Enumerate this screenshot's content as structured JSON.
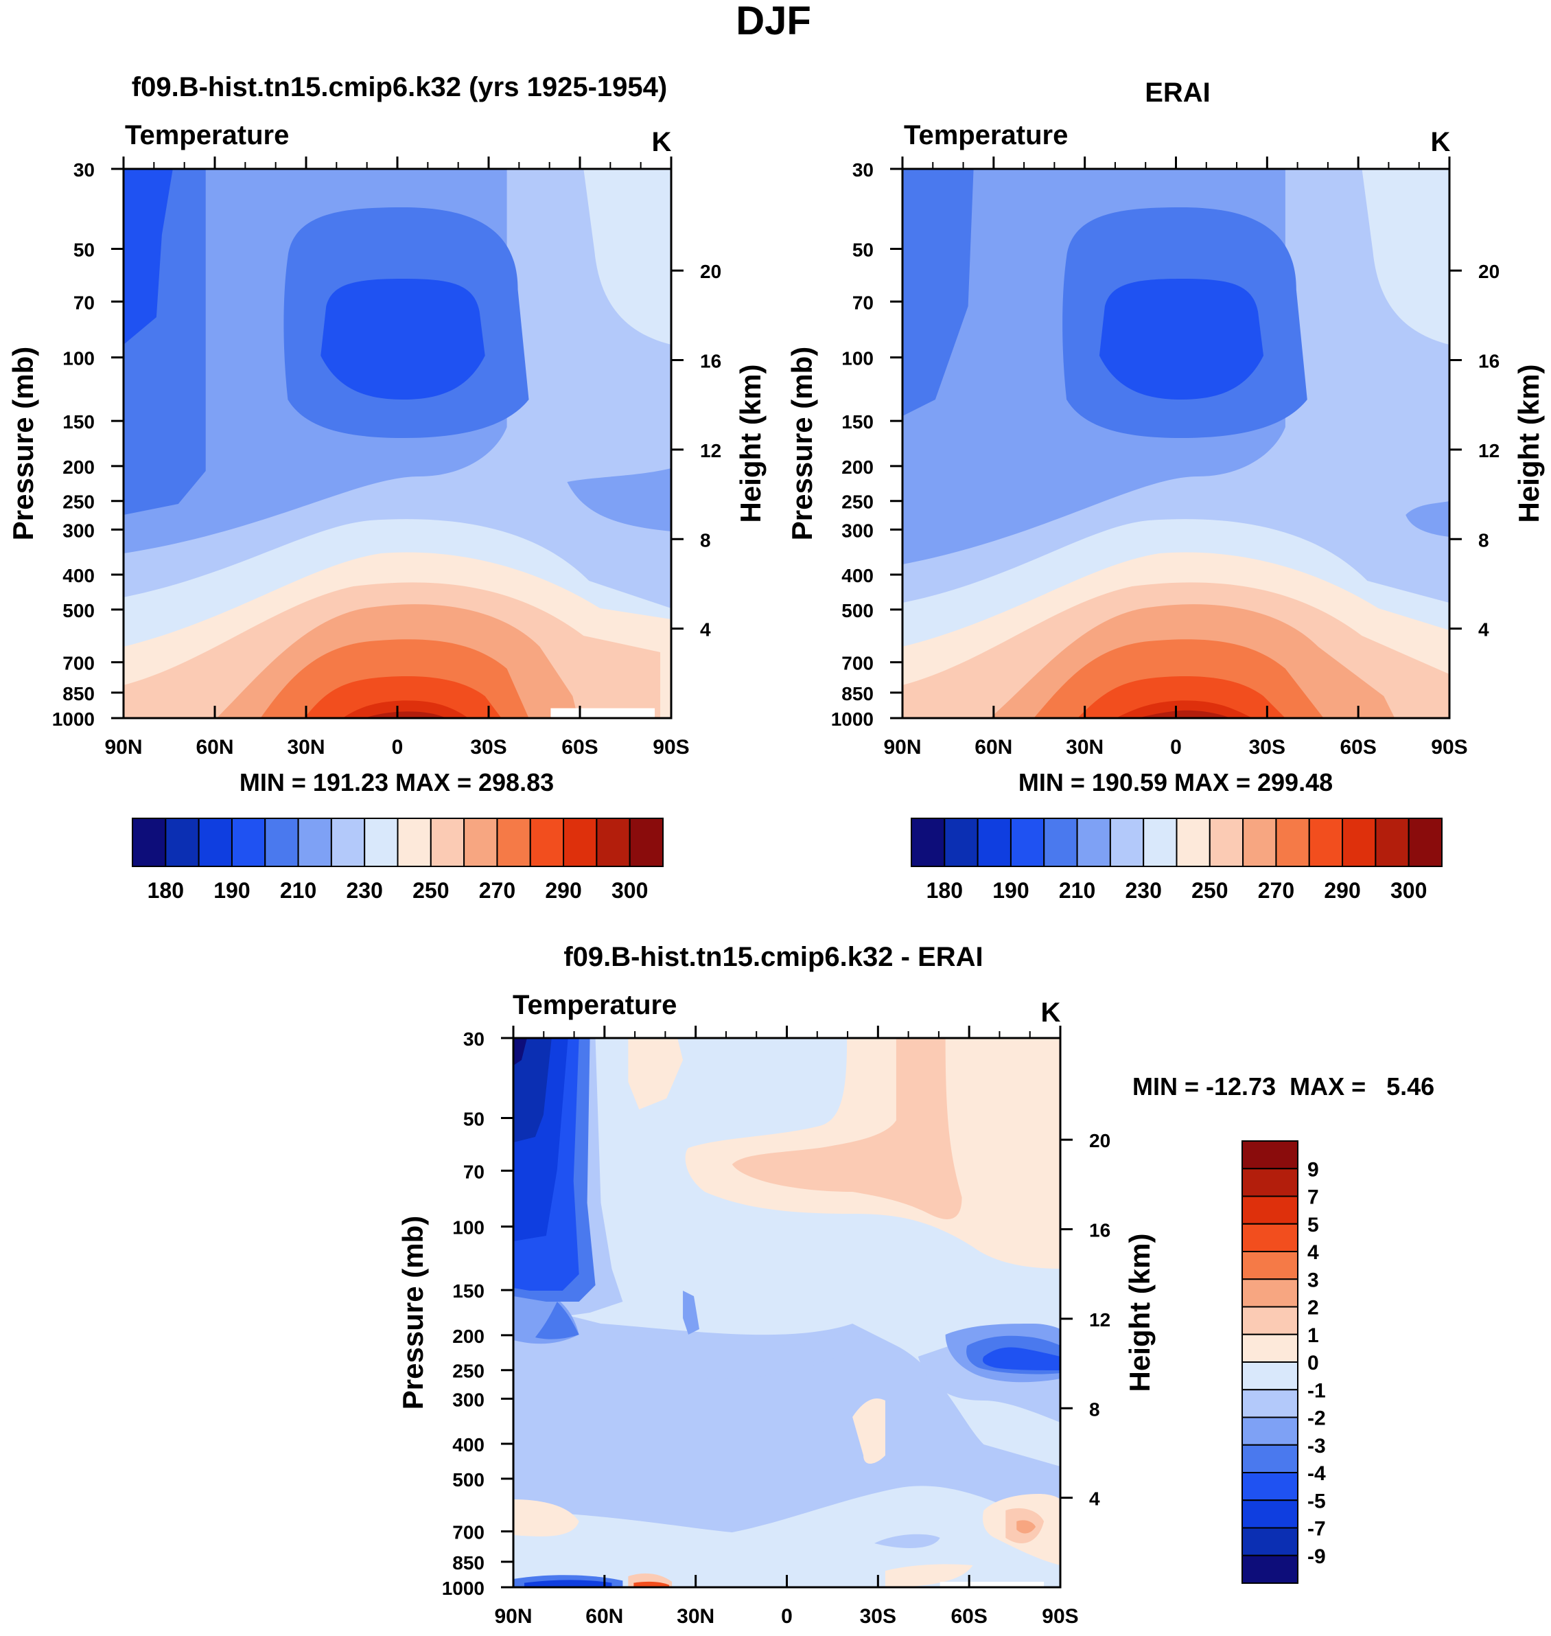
{
  "figure_title": "DJF",
  "units": "K",
  "chart_data": [
    {
      "type": "contour",
      "title": "f09.B-hist.tn15.cmip6.k32 (yrs 1925-1954)",
      "subtitle": "Temperature",
      "units": "K",
      "xlabel": "",
      "ylabel": "Pressure (mb)",
      "y2label": "Height (km)",
      "x_ticks": [
        "90N",
        "60N",
        "30N",
        "0",
        "30S",
        "60S",
        "90S"
      ],
      "y_ticks": [
        "30",
        "50",
        "70",
        "100",
        "150",
        "200",
        "250",
        "300",
        "400",
        "500",
        "700",
        "850",
        "1000"
      ],
      "y2_ticks": [
        "20",
        "16",
        "12",
        "8",
        "4"
      ],
      "stats": "MIN = 191.23  MAX = 298.83",
      "min": 191.23,
      "max": 298.83
    },
    {
      "type": "contour",
      "title": "ERAI",
      "subtitle": "Temperature",
      "units": "K",
      "xlabel": "",
      "ylabel": "Pressure (mb)",
      "y2label": "Height (km)",
      "x_ticks": [
        "90N",
        "60N",
        "30N",
        "0",
        "30S",
        "60S",
        "90S"
      ],
      "y_ticks": [
        "30",
        "50",
        "70",
        "100",
        "150",
        "200",
        "250",
        "300",
        "400",
        "500",
        "700",
        "850",
        "1000"
      ],
      "y2_ticks": [
        "20",
        "16",
        "12",
        "8",
        "4"
      ],
      "stats": "MIN = 190.59  MAX = 299.48",
      "min": 190.59,
      "max": 299.48
    },
    {
      "type": "contour",
      "title": "f09.B-hist.tn15.cmip6.k32 - ERAI",
      "subtitle": "Temperature",
      "units": "K",
      "xlabel": "",
      "ylabel": "Pressure (mb)",
      "y2label": "Height (km)",
      "x_ticks": [
        "90N",
        "60N",
        "30N",
        "0",
        "30S",
        "60S",
        "90S"
      ],
      "y_ticks": [
        "30",
        "50",
        "70",
        "100",
        "150",
        "200",
        "250",
        "300",
        "400",
        "500",
        "700",
        "850",
        "1000"
      ],
      "y2_ticks": [
        "20",
        "16",
        "12",
        "8",
        "4"
      ],
      "stats": "MIN = -12.73  MAX =   5.46",
      "min": -12.73,
      "max": 5.46
    }
  ],
  "colorbar_abs": {
    "labels": [
      "180",
      "190",
      "210",
      "230",
      "250",
      "270",
      "290",
      "300"
    ],
    "colors": [
      "#0d0d7a",
      "#0b2fb3",
      "#0f3ee0",
      "#1f52f2",
      "#4a79ee",
      "#7ea1f5",
      "#b3c9fa",
      "#d9e8fb",
      "#fde9da",
      "#fbcbb4",
      "#f7a681",
      "#f57a47",
      "#f24e1e",
      "#de300c",
      "#b31e0c",
      "#8a0c0c"
    ]
  },
  "colorbar_diff": {
    "labels": [
      "9",
      "7",
      "5",
      "4",
      "3",
      "2",
      "1",
      "0",
      "-1",
      "-2",
      "-3",
      "-4",
      "-5",
      "-7",
      "-9"
    ],
    "colors": [
      "#0d0d7a",
      "#0b2fb3",
      "#0f3ee0",
      "#1f52f2",
      "#4a79ee",
      "#7ea1f5",
      "#b3c9fa",
      "#d9e8fb",
      "#fde9da",
      "#fbcbb4",
      "#f7a681",
      "#f57a47",
      "#f24e1e",
      "#de300c",
      "#b31e0c",
      "#8a0c0c"
    ]
  },
  "palette": {
    "c1": "#0d0d7a",
    "c2": "#0b2fb3",
    "c3": "#0f3ee0",
    "c4": "#1f52f2",
    "c5": "#4a79ee",
    "c6": "#7ea1f5",
    "c7": "#b3c9fa",
    "c8": "#d9e8fb",
    "c9": "#fde9da",
    "c10": "#fbcbb4",
    "c11": "#f7a681",
    "c12": "#f57a47",
    "c13": "#f24e1e",
    "c14": "#de300c",
    "c15": "#b31e0c",
    "c16": "#8a0c0c"
  }
}
